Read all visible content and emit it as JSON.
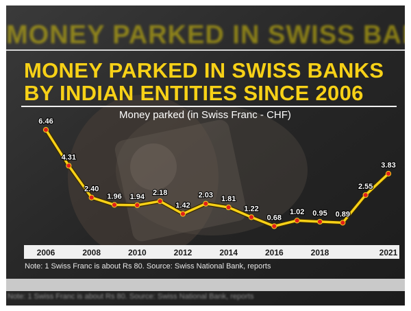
{
  "ghost_heading": "MONEY PARKED IN SWISS BANKS",
  "ghost_note": "Note: 1 Swiss Franc is about Rs 80. Source: Swiss National Bank, reports",
  "chart_data": {
    "type": "line",
    "title": "MONEY PARKED IN SWISS BANKS BY INDIAN ENTITIES SINCE 2006",
    "subtitle": "Money parked (in Swiss Franc - CHF)",
    "xlabel": "",
    "ylabel": "",
    "x": [
      2006,
      2007,
      2008,
      2009,
      2010,
      2011,
      2012,
      2013,
      2014,
      2015,
      2016,
      2017,
      2018,
      2019,
      2020,
      2021
    ],
    "values": [
      6.46,
      4.31,
      2.4,
      1.96,
      1.94,
      2.18,
      1.42,
      2.03,
      1.81,
      1.22,
      0.68,
      1.02,
      0.95,
      0.89,
      2.55,
      3.83
    ],
    "value_labels": [
      "6.46",
      "4.31",
      "2.40",
      "1.96",
      "1.94",
      "2.18",
      "1.42",
      "2.03",
      "1.81",
      "1.22",
      "0.68",
      "1.02",
      "0.95",
      "0.89",
      "2.55",
      "3.83"
    ],
    "x_tick_labels": [
      "2006",
      "2008",
      "2010",
      "2012",
      "2014",
      "2016",
      "2018",
      "2021"
    ],
    "x_tick_values": [
      2006,
      2008,
      2010,
      2012,
      2014,
      2016,
      2018,
      2021
    ],
    "ylim": [
      0,
      7
    ],
    "grid": false,
    "line_color": "#f7d117",
    "marker_color": "#e0201b",
    "note": "Note: 1 Swiss Franc is about Rs 80. Source: Swiss National Bank, reports"
  }
}
